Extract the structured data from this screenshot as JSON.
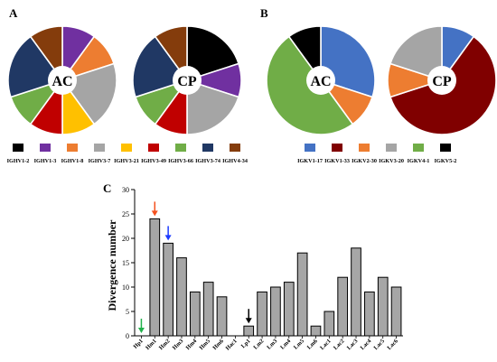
{
  "panels": {
    "A": {
      "label": "A",
      "colors": [
        "#000000",
        "#7030A0",
        "#ED7D31",
        "#A5A5A5",
        "#FFC000",
        "#C00000",
        "#70AD47",
        "#203864",
        "#843C0C"
      ],
      "legend": [
        "IGHV1-2",
        "IGHV1-3",
        "IGHV1-8",
        "IGHV3-7",
        "IGHV3-21",
        "IGHV3-49",
        "IGHV3-66",
        "IGHV3-74",
        "IGHV4-34"
      ],
      "pies": [
        {
          "center_label": "AC",
          "slices": [
            0,
            1,
            1,
            2,
            1,
            1,
            1,
            2,
            1
          ]
        },
        {
          "center_label": "CP",
          "slices": [
            2,
            1,
            0,
            2,
            0,
            1,
            1,
            2,
            1
          ]
        }
      ]
    },
    "B": {
      "label": "B",
      "colors": [
        "#4472C4",
        "#800000",
        "#ED7D31",
        "#A5A5A5",
        "#70AD47",
        "#000000"
      ],
      "legend": [
        "IGKV1-17",
        "IGKV1-33",
        "IGKV2-30",
        "IGKV3-20",
        "IGKV4-1",
        "IGKV5-2"
      ],
      "pies": [
        {
          "center_label": "AC",
          "slices": [
            3,
            0,
            1,
            0,
            5,
            1
          ]
        },
        {
          "center_label": "CP",
          "slices": [
            1,
            6,
            1,
            2,
            0,
            0
          ]
        }
      ]
    }
  },
  "chart_data": {
    "type": "bar",
    "panel_label": "C",
    "ylabel": "Divergence number",
    "ylim": [
      0,
      30
    ],
    "yticks": [
      0,
      5,
      10,
      15,
      20,
      25,
      30
    ],
    "categories": [
      "Hp1",
      "Hm1",
      "Hm2",
      "Hm3",
      "Hm4",
      "Hm5",
      "Hm6",
      "Hac1",
      "Lp1",
      "Lm2",
      "Lm3",
      "Lm4",
      "Lm5",
      "Lm6",
      "Lac1",
      "Lac2",
      "Lac3",
      "Lac4",
      "Lac5",
      "Lac6"
    ],
    "values": [
      0,
      24,
      19,
      16,
      9,
      11,
      8,
      0,
      2,
      9,
      10,
      11,
      17,
      2,
      5,
      12,
      18,
      9,
      12,
      10
    ],
    "bar_color": "#A6A6A6",
    "arrows": [
      {
        "category": "Hp1",
        "color": "#22B14C"
      },
      {
        "category": "Hm1",
        "color": "#F4511E"
      },
      {
        "category": "Hm2",
        "color": "#1E3CFF"
      },
      {
        "category": "Lp1",
        "color": "#000000"
      }
    ]
  }
}
